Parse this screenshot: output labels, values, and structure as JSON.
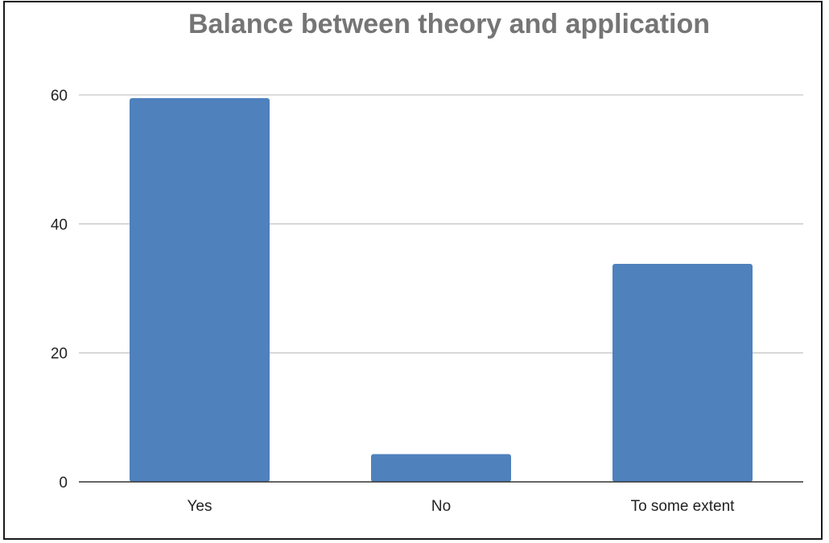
{
  "chart_data": {
    "type": "bar",
    "title": "Balance between theory and application",
    "categories": [
      "Yes",
      "No",
      "To some extent"
    ],
    "values": [
      59.5,
      4.3,
      33.8
    ],
    "ylim": [
      0,
      60
    ],
    "yticks": [
      0,
      20,
      40,
      60
    ],
    "grid": true,
    "bar_color": "#4f81bd",
    "title_color": "#757575"
  }
}
